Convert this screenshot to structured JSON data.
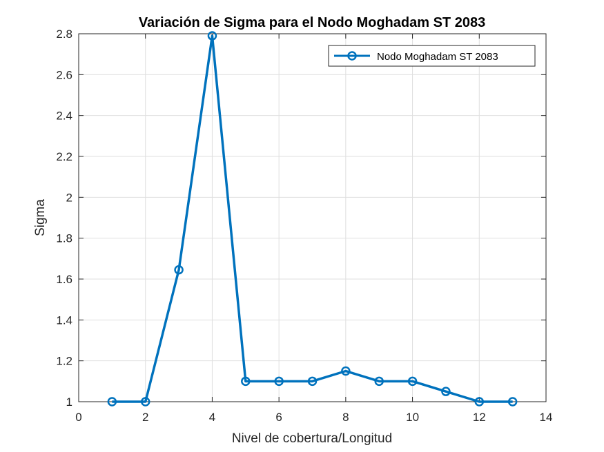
{
  "chart_data": {
    "type": "line",
    "title": "Variación de Sigma para el Nodo Moghadam ST 2083",
    "xlabel": "Nivel de cobertura/Longitud",
    "ylabel": "Sigma",
    "xlim": [
      0,
      14
    ],
    "ylim": [
      1,
      2.8
    ],
    "xticks": [
      0,
      2,
      4,
      6,
      8,
      10,
      12,
      14
    ],
    "yticks": [
      1,
      1.2,
      1.4,
      1.6,
      1.8,
      2,
      2.2,
      2.4,
      2.6,
      2.8
    ],
    "xtick_labels": [
      "0",
      "2",
      "4",
      "6",
      "8",
      "10",
      "12",
      "14"
    ],
    "ytick_labels": [
      "1",
      "1.2",
      "1.4",
      "1.6",
      "1.8",
      "2",
      "2.2",
      "2.4",
      "2.6",
      "2.8"
    ],
    "grid": true,
    "legend_position": "top-right",
    "series": [
      {
        "name": "Nodo Moghadam ST 2083",
        "color": "#0072BD",
        "marker": "circle",
        "x": [
          1,
          2,
          3,
          4,
          5,
          6,
          7,
          8,
          9,
          10,
          11,
          12,
          13
        ],
        "y": [
          1.0,
          1.0,
          1.645,
          2.79,
          1.1,
          1.1,
          1.1,
          1.15,
          1.1,
          1.1,
          1.05,
          1.0,
          1.0
        ]
      }
    ]
  }
}
